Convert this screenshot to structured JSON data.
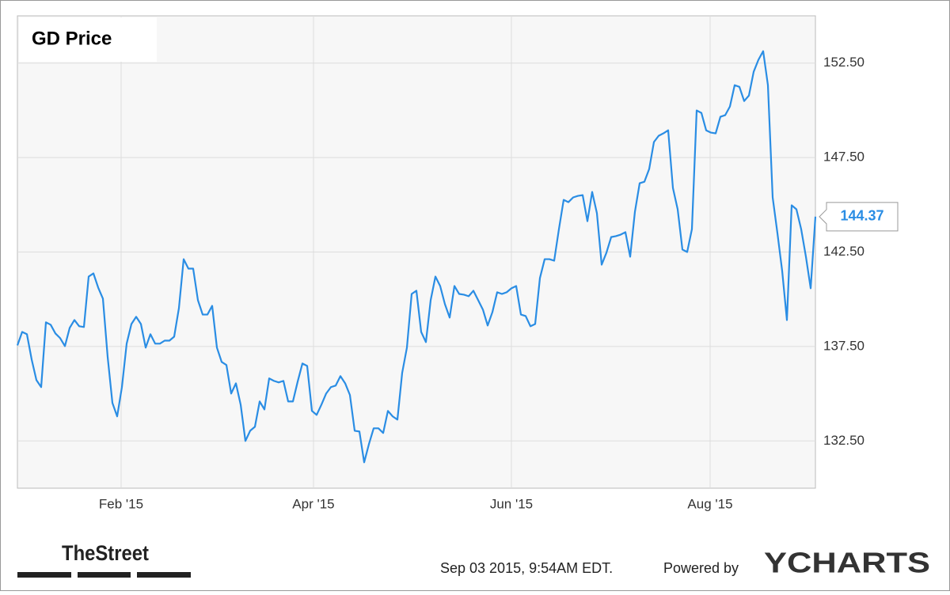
{
  "chart_data": {
    "type": "line",
    "title": "GD Price",
    "series": [
      {
        "name": "GD Price",
        "color": "#2a8de4",
        "values": [
          137.56,
          138.27,
          138.15,
          136.81,
          135.72,
          135.35,
          138.78,
          138.65,
          138.19,
          137.94,
          137.52,
          138.48,
          138.9,
          138.57,
          138.53,
          141.2,
          141.37,
          140.62,
          140.03,
          136.94,
          134.51,
          133.8,
          135.35,
          137.65,
          138.69,
          139.07,
          138.69,
          137.44,
          138.15,
          137.65,
          137.65,
          137.81,
          137.81,
          138.02,
          139.53,
          142.12,
          141.62,
          141.62,
          139.95,
          139.19,
          139.19,
          139.65,
          137.44,
          136.68,
          136.52,
          135.01,
          135.55,
          134.42,
          132.5,
          133.04,
          133.25,
          134.59,
          134.17,
          135.81,
          135.68,
          135.6,
          135.68,
          134.59,
          134.59,
          135.64,
          136.6,
          136.47,
          134.09,
          133.88,
          134.42,
          135.01,
          135.35,
          135.43,
          135.93,
          135.55,
          134.93,
          133.04,
          133.0,
          131.37,
          132.33,
          133.17,
          133.17,
          132.92,
          134.09,
          133.8,
          133.63,
          136.1,
          137.44,
          140.28,
          140.45,
          138.27,
          137.73,
          139.95,
          141.2,
          140.7,
          139.74,
          139.03,
          140.7,
          140.28,
          140.24,
          140.16,
          140.45,
          139.95,
          139.45,
          138.61,
          139.32,
          140.37,
          140.28,
          140.37,
          140.58,
          140.7,
          139.19,
          139.11,
          138.57,
          138.69,
          141.12,
          142.12,
          142.12,
          142.04,
          143.71,
          145.26,
          145.14,
          145.39,
          145.47,
          145.51,
          144.13,
          145.68,
          144.55,
          141.83,
          142.46,
          143.29,
          143.34,
          143.42,
          143.55,
          142.25,
          144.63,
          146.14,
          146.22,
          146.89,
          148.32,
          148.65,
          148.78,
          148.94,
          145.89,
          144.76,
          142.63,
          142.5,
          143.71,
          149.99,
          149.86,
          148.94,
          148.82,
          148.78,
          149.66,
          149.74,
          150.2,
          151.33,
          151.24,
          150.49,
          150.78,
          152.04,
          152.67,
          153.13,
          151.33,
          145.39,
          143.5,
          141.5,
          138.9,
          144.97,
          144.76,
          143.71,
          142.25,
          140.58,
          144.37
        ]
      }
    ],
    "xlim": [
      0,
      168
    ],
    "xticks": [
      {
        "value": 21.83,
        "label": "Feb '15"
      },
      {
        "value": 62.33,
        "label": "Apr '15"
      },
      {
        "value": 104,
        "label": "Jun '15"
      },
      {
        "value": 145.83,
        "label": "Aug '15"
      }
    ],
    "ylim": [
      130,
      155
    ],
    "yticks": [
      {
        "value": 132.5,
        "label": "132.50"
      },
      {
        "value": 137.5,
        "label": "137.50"
      },
      {
        "value": 142.5,
        "label": "142.50"
      },
      {
        "value": 147.5,
        "label": "147.50"
      },
      {
        "value": 152.5,
        "label": "152.50"
      }
    ],
    "grid": true
  },
  "footer": {
    "source": "TheStreet",
    "timestamp": "Sep 03 2015, 9:54AM EDT.",
    "powered": "Powered by",
    "logo": "YCHARTS"
  }
}
